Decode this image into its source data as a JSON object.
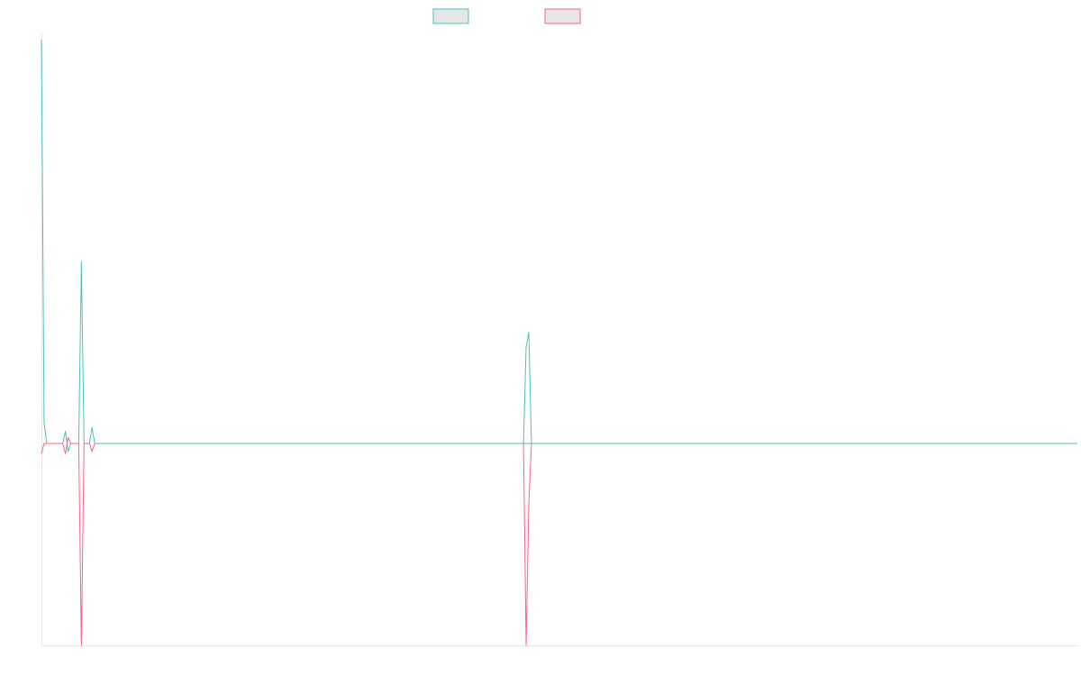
{
  "colors": {
    "series_1": "#4bc0c0",
    "series_2": "#ff6384",
    "legend_fill": "#e6e6e6",
    "axis": "#e5e5e5"
  },
  "chart_data": {
    "type": "line",
    "title": "",
    "xlabel": "",
    "ylabel": "",
    "legend_position": "top-center",
    "grid": false,
    "x_count": 390,
    "ylim": [
      -1,
      1
    ],
    "series": [
      {
        "name": "",
        "color": "#4bc0c0",
        "points": [
          {
            "i": 0,
            "v": 2.0
          },
          {
            "i": 1,
            "v": 0.1
          },
          {
            "i": 2,
            "v": 0
          },
          {
            "i": 8,
            "v": 0
          },
          {
            "i": 9,
            "v": 0.06
          },
          {
            "i": 10,
            "v": -0.04
          },
          {
            "i": 11,
            "v": 0
          },
          {
            "i": 14,
            "v": 0
          },
          {
            "i": 15,
            "v": 0.9
          },
          {
            "i": 16,
            "v": 0
          },
          {
            "i": 18,
            "v": 0
          },
          {
            "i": 19,
            "v": 0.08
          },
          {
            "i": 20,
            "v": 0
          },
          {
            "i": 181,
            "v": 0
          },
          {
            "i": 182,
            "v": 0.48
          },
          {
            "i": 183,
            "v": 0.55
          },
          {
            "i": 184,
            "v": 0
          },
          {
            "i": 389,
            "v": 0
          }
        ]
      },
      {
        "name": "",
        "color": "#ff6384",
        "points": [
          {
            "i": 0,
            "v": -0.05
          },
          {
            "i": 1,
            "v": 0
          },
          {
            "i": 8,
            "v": 0
          },
          {
            "i": 9,
            "v": -0.05
          },
          {
            "i": 10,
            "v": 0.03
          },
          {
            "i": 11,
            "v": 0
          },
          {
            "i": 14,
            "v": 0
          },
          {
            "i": 15,
            "v": -1.0
          },
          {
            "i": 16,
            "v": 0
          },
          {
            "i": 18,
            "v": 0
          },
          {
            "i": 19,
            "v": -0.04
          },
          {
            "i": 20,
            "v": 0
          },
          {
            "i": 181,
            "v": 0
          },
          {
            "i": 182,
            "v": -1.02
          },
          {
            "i": 183,
            "v": -0.3
          },
          {
            "i": 184,
            "v": 0
          },
          {
            "i": 389,
            "v": 0
          }
        ]
      }
    ]
  }
}
